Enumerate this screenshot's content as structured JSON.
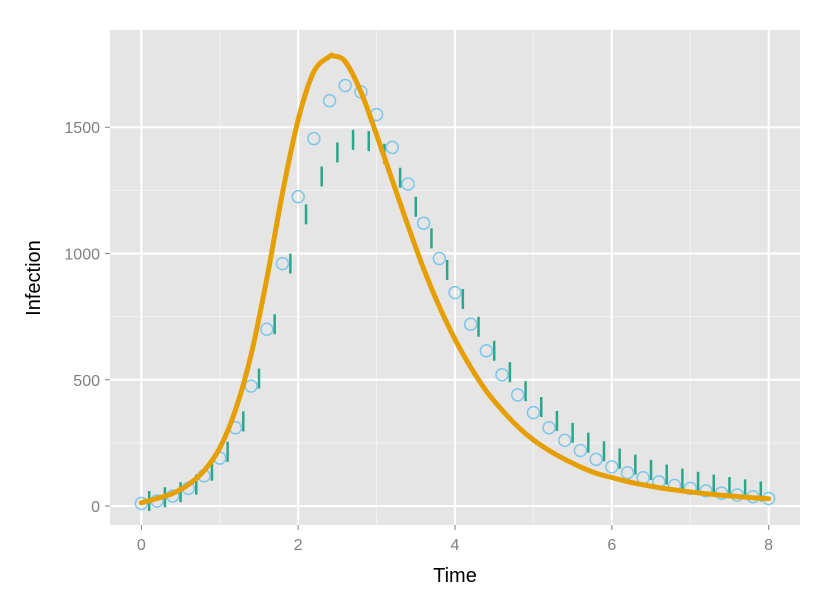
{
  "chart_data": {
    "type": "line",
    "title": "",
    "xlabel": "Time",
    "ylabel": "Infection",
    "xlim": [
      -0.4,
      8.4
    ],
    "ylim": [
      -75,
      1885
    ],
    "xticks": [
      0,
      2,
      4,
      6,
      8
    ],
    "yticks": [
      0,
      500,
      1000,
      1500
    ],
    "grid": true,
    "legend": "none",
    "colors": {
      "panel": "#e5e5e5",
      "grid": "#ffffff",
      "curve": "#e69f00",
      "circles": "#7fc6ea",
      "ticks": "#2aa78a"
    },
    "series": [
      {
        "kind": "curve",
        "x": [
          0,
          0.2,
          0.4,
          0.6,
          0.8,
          1.0,
          1.2,
          1.4,
          1.6,
          1.8,
          2.0,
          2.2,
          2.4,
          2.45,
          2.6,
          2.8,
          3.0,
          3.2,
          3.4,
          3.6,
          3.8,
          4.0,
          4.2,
          4.4,
          4.6,
          4.8,
          5.0,
          5.2,
          5.4,
          5.6,
          5.8,
          6.0,
          6.2,
          6.4,
          6.6,
          6.8,
          7.0,
          7.2,
          7.4,
          7.6,
          7.8,
          8.0
        ],
        "y": [
          13,
          30,
          50,
          85,
          140,
          230,
          380,
          600,
          900,
          1240,
          1530,
          1720,
          1780,
          1782,
          1760,
          1640,
          1470,
          1290,
          1110,
          940,
          790,
          660,
          550,
          455,
          380,
          315,
          262,
          220,
          185,
          155,
          130,
          113,
          97,
          84,
          73,
          64,
          56,
          49,
          43,
          38,
          33,
          29
        ]
      },
      {
        "kind": "circles",
        "x": [
          0,
          0.2,
          0.4,
          0.6,
          0.8,
          1.0,
          1.2,
          1.4,
          1.6,
          1.8,
          2.0,
          2.2,
          2.4,
          2.6,
          2.8,
          3.0,
          3.2,
          3.4,
          3.6,
          3.8,
          4.0,
          4.2,
          4.4,
          4.6,
          4.8,
          5.0,
          5.2,
          5.4,
          5.6,
          5.8,
          6.0,
          6.2,
          6.4,
          6.6,
          6.8,
          7.0,
          7.2,
          7.4,
          7.6,
          7.8,
          8.0
        ],
        "y": [
          10,
          20,
          40,
          70,
          120,
          190,
          310,
          475,
          700,
          960,
          1225,
          1455,
          1605,
          1665,
          1640,
          1550,
          1420,
          1275,
          1120,
          980,
          845,
          720,
          615,
          520,
          440,
          370,
          310,
          260,
          220,
          185,
          155,
          132,
          112,
          96,
          82,
          70,
          60,
          51,
          44,
          37,
          30
        ]
      },
      {
        "kind": "ticks",
        "x": [
          0.1,
          0.3,
          0.5,
          0.7,
          0.9,
          1.1,
          1.3,
          1.5,
          1.7,
          1.9,
          2.1,
          2.3,
          2.5,
          2.7,
          2.9,
          3.1,
          3.3,
          3.5,
          3.7,
          3.9,
          4.1,
          4.3,
          4.5,
          4.7,
          4.9,
          5.1,
          5.3,
          5.5,
          5.7,
          5.9,
          6.1,
          6.3,
          6.5,
          6.7,
          6.9,
          7.1,
          7.3,
          7.5,
          7.7,
          7.9
        ],
        "y": [
          20,
          35,
          55,
          85,
          140,
          215,
          335,
          505,
          720,
          960,
          1155,
          1305,
          1400,
          1450,
          1445,
          1395,
          1300,
          1185,
          1060,
          935,
          820,
          710,
          615,
          530,
          455,
          392,
          337,
          290,
          251,
          217,
          188,
          164,
          143,
          125,
          109,
          96,
          85,
          75,
          66,
          58
        ]
      }
    ]
  }
}
